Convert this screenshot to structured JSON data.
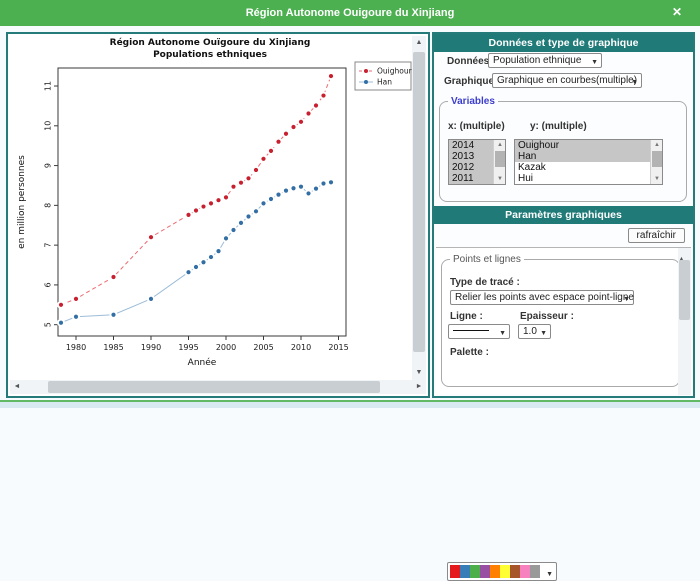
{
  "window": {
    "title": "Région Autonome Ouigoure du Xinjiang"
  },
  "icons": {
    "close": "✕",
    "up": "▲",
    "down": "▼",
    "left": "◄",
    "right": "►",
    "dropdown": "▼"
  },
  "chart_data": {
    "type": "line",
    "title_line1": "Région Autonome Ouïgoure du Xinjiang",
    "title_line2": "Populations ethniques",
    "xlabel": "Année",
    "ylabel": "en million personnes",
    "xlim": [
      1977,
      2016
    ],
    "ylim": [
      4.7,
      11.5
    ],
    "xticks": [
      1980,
      1985,
      1990,
      1995,
      2000,
      2005,
      2010,
      2015
    ],
    "yticks": [
      5,
      6,
      7,
      8,
      9,
      10,
      11
    ],
    "grid": false,
    "legend_position": "top-right-outside",
    "plot_style": "points-with-line-gaps",
    "x": [
      1978,
      1980,
      1985,
      1990,
      1995,
      1996,
      1997,
      1998,
      1999,
      2000,
      2001,
      2002,
      2003,
      2004,
      2005,
      2006,
      2007,
      2008,
      2009,
      2010,
      2011,
      2012,
      2013,
      2014
    ],
    "series": [
      {
        "name": "Ouighour",
        "color": "#c8202f",
        "line_color": "#ee6a72",
        "line_style": "dashed",
        "values": [
          5.5,
          5.65,
          6.2,
          7.2,
          7.76,
          7.87,
          7.97,
          8.05,
          8.13,
          8.2,
          8.47,
          8.57,
          8.68,
          8.89,
          9.17,
          9.37,
          9.6,
          9.8,
          9.97,
          10.1,
          10.31,
          10.51,
          10.76,
          11.25
        ]
      },
      {
        "name": "Han",
        "color": "#336fa5",
        "line_color": "#9dbdd8",
        "line_style": "solid",
        "values": [
          5.05,
          5.2,
          5.25,
          5.65,
          6.32,
          6.45,
          6.57,
          6.7,
          6.85,
          7.17,
          7.38,
          7.56,
          7.72,
          7.85,
          8.05,
          8.16,
          8.27,
          8.37,
          8.43,
          8.47,
          8.3,
          8.42,
          8.55,
          8.58
        ]
      }
    ]
  },
  "panel_data": {
    "header": "Données et type de graphique",
    "donnees_label": "Données :",
    "donnees_value": "Population ethnique",
    "graphique_label": "Graphique :",
    "graphique_value": "Graphique en courbes(multiple)",
    "variables": {
      "legend": "Variables",
      "x_label": "x: (multiple)",
      "y_label": "y: (multiple)",
      "x_options": [
        "2014",
        "2013",
        "2012",
        "2011"
      ],
      "y_options": [
        "Ouighour",
        "Han",
        "Kazak",
        "Hui"
      ]
    }
  },
  "panel_params": {
    "header": "Paramètres graphiques",
    "refresh_label": "rafraîchir",
    "fieldset_legend": "Points et lignes",
    "trace_label": "Type de tracé :",
    "trace_value": "Relier les points avec espace point-ligne",
    "ligne_label": "Ligne :",
    "epaisseur_label": "Epaisseur :",
    "epaisseur_value": "1.0",
    "palette_label": "Palette :",
    "palette_colors": [
      "#E41A1C",
      "#377EB8",
      "#4DAF4A",
      "#984EA3",
      "#FF7F00",
      "#FFFF33",
      "#A65628",
      "#F781BF",
      "#999999"
    ]
  }
}
